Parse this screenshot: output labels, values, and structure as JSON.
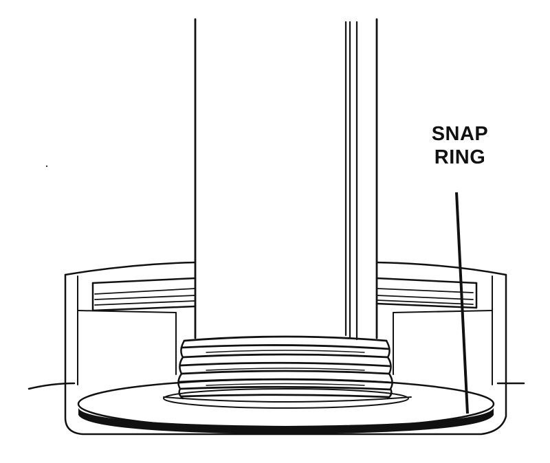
{
  "callout": {
    "line1": "SNAP",
    "line2": "RING"
  }
}
